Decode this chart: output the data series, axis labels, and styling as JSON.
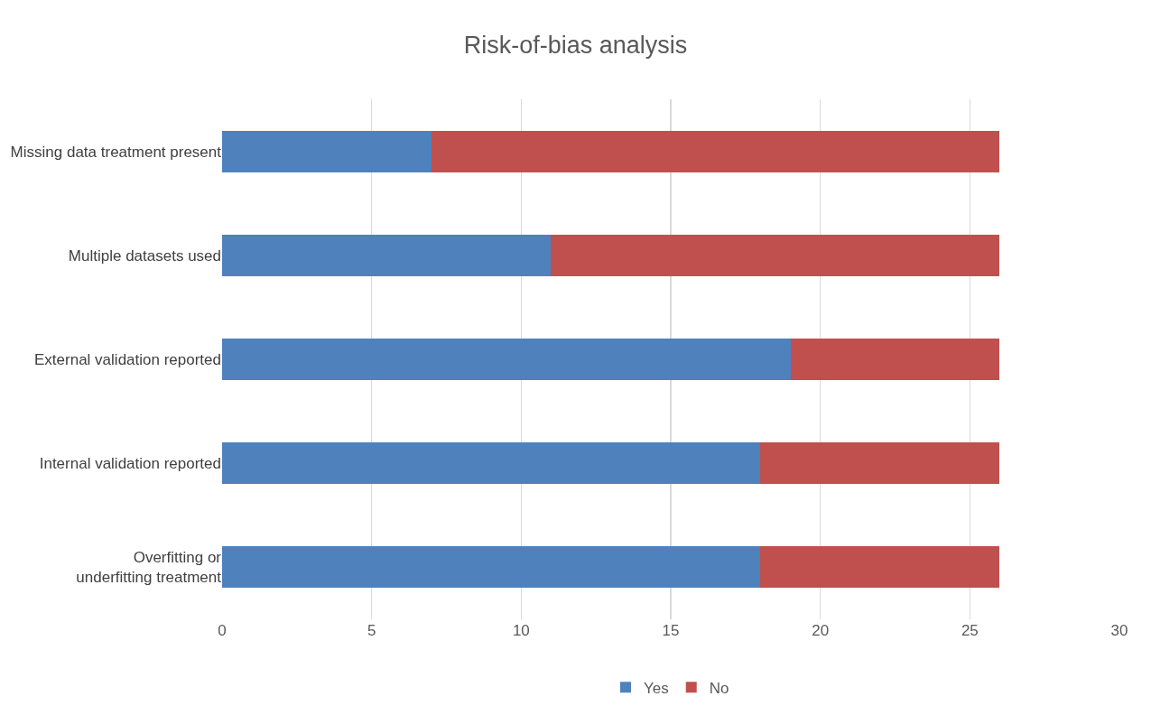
{
  "chart_data": {
    "type": "bar",
    "title": "Risk-of-bias analysis",
    "orientation": "horizontal",
    "stacked": true,
    "categories": [
      "Missing data treatment present",
      "Multiple datasets used",
      "External validation reported",
      "Internal validation reported",
      "Overfitting or underfitting treatment"
    ],
    "series": [
      {
        "name": "Yes",
        "color": "#4f81bd",
        "values": [
          7,
          11,
          19,
          18,
          18
        ]
      },
      {
        "name": "No",
        "color": "#c0504d",
        "values": [
          19,
          15,
          7,
          8,
          8
        ]
      }
    ],
    "xlim": [
      0,
      30
    ],
    "xticks": [
      0,
      5,
      10,
      15,
      20,
      25,
      30
    ],
    "grid": "x",
    "legend": "bottom"
  }
}
